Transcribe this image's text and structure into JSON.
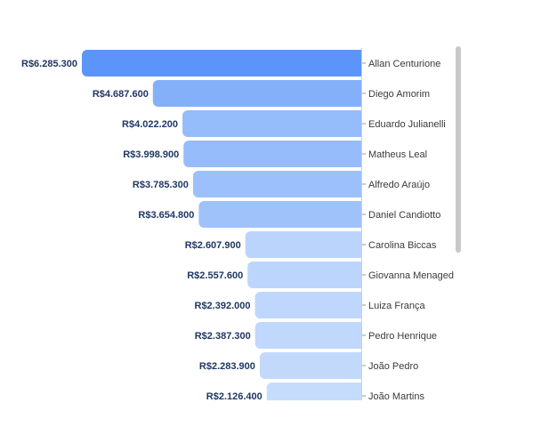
{
  "chart_data": {
    "type": "bar",
    "orientation": "horizontal",
    "categories": [
      "Allan Centurione",
      "Diego Amorim",
      "Eduardo Julianelli",
      "Matheus Leal",
      "Alfredo Araújo",
      "Daniel Candiotto",
      "Carolina Biccas",
      "Giovanna Menaged",
      "Luiza França",
      "Pedro Henrique",
      "João Pedro",
      "João Martins"
    ],
    "values": [
      6285300,
      4687600,
      4022200,
      3998900,
      3785300,
      3654800,
      2607900,
      2557600,
      2392000,
      2387300,
      2283900,
      2126400
    ],
    "data_labels": [
      "R$6.285.300",
      "R$4.687.600",
      "R$4.022.200",
      "R$3.998.900",
      "R$3.785.300",
      "R$3.654.800",
      "R$2.607.900",
      "R$2.557.600",
      "R$2.392.000",
      "R$2.387.300",
      "R$2.283.900",
      "R$2.126.400"
    ],
    "title": "",
    "xlabel": "",
    "ylabel": "",
    "xlim": [
      0,
      6285300
    ],
    "axis_position": "right",
    "bar_direction": "right-to-left",
    "grid": false,
    "legend": "none",
    "colors": {
      "max": "#5b95f9",
      "min": "#c6dcfc",
      "label": "#1f3864",
      "tick": "#3a3a3a"
    }
  }
}
